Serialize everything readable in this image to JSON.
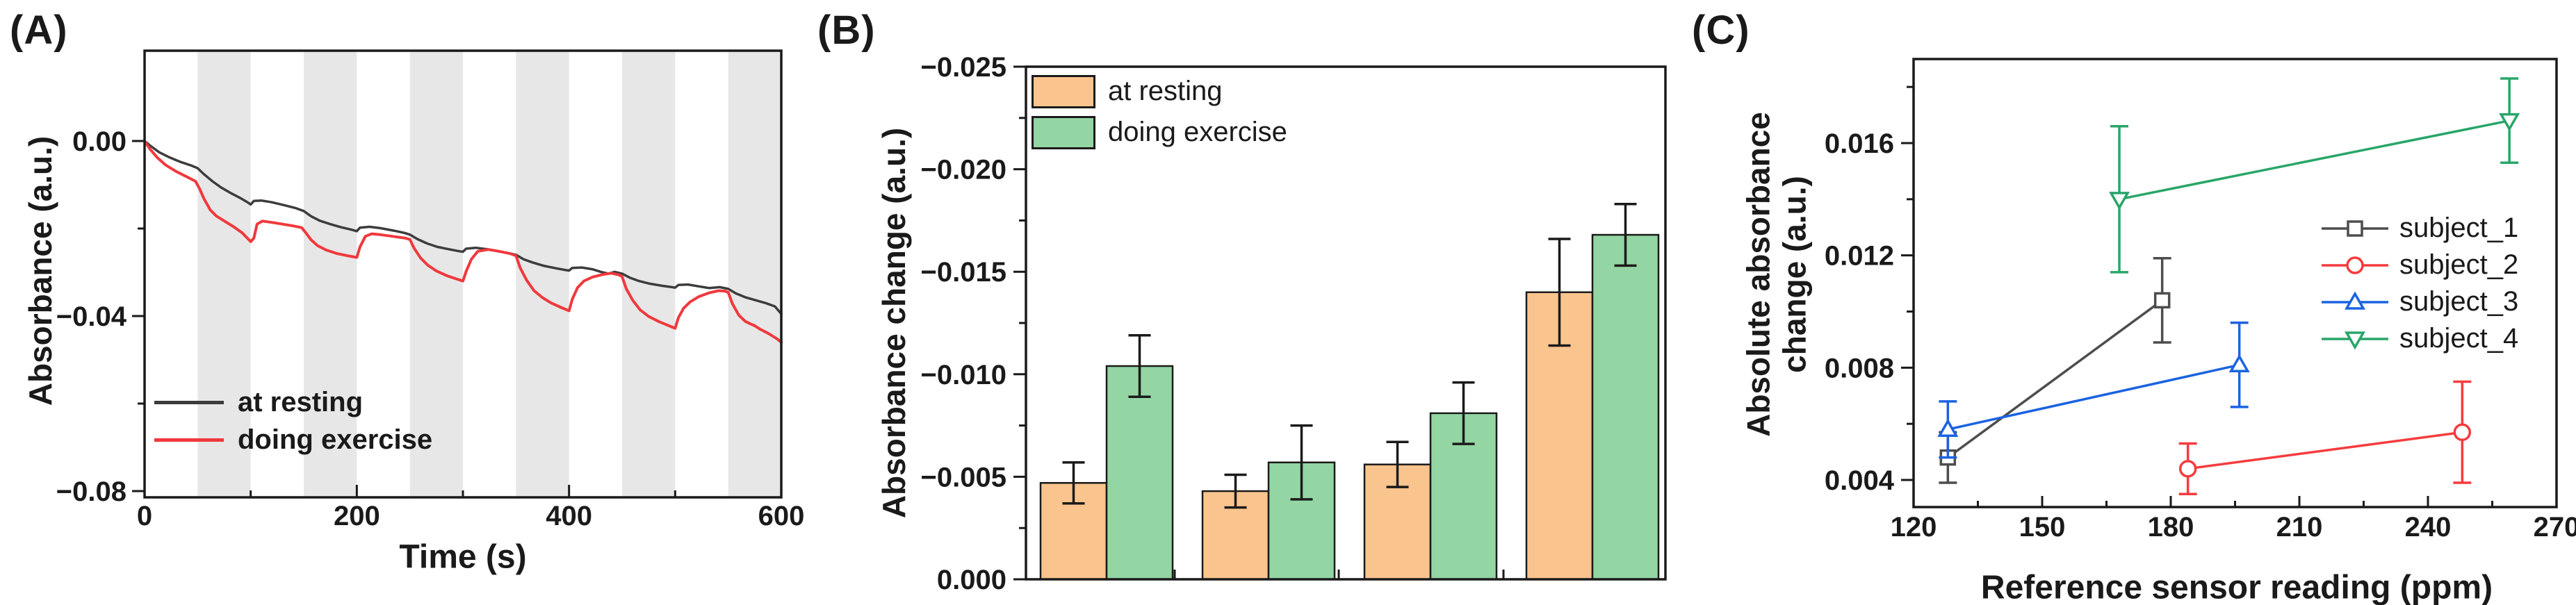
{
  "panel_labels": {
    "a": "(A)",
    "b": "(B)",
    "c": "(C)"
  },
  "chart_data": [
    {
      "panel": "A",
      "type": "line",
      "xlabel": "Time (s)",
      "ylabel": "Absorbance (a.u.)",
      "xlim": [
        0,
        600
      ],
      "ylim": [
        -0.0814,
        0.0206
      ],
      "grid": false,
      "x_ticks": {
        "values": [
          0,
          200,
          400,
          600
        ],
        "labels": [
          "0",
          "200",
          "400",
          "600"
        ],
        "minor": [
          100,
          300,
          500
        ]
      },
      "y_ticks": {
        "values": [
          0.0,
          -0.04,
          -0.08
        ],
        "labels": [
          "0.00",
          "−0.04",
          "−0.08"
        ],
        "minor": [
          -0.02,
          -0.06
        ]
      },
      "shaded_bands": [
        [
          50,
          100
        ],
        [
          150,
          200
        ],
        [
          250,
          300
        ],
        [
          350,
          400
        ],
        [
          450,
          500
        ],
        [
          550,
          600
        ]
      ],
      "band_color": "#E7E7E7",
      "legend_position": "lower-left",
      "series": [
        {
          "name": "at resting",
          "color": "#3C3C3C",
          "points": [
            [
              0,
              0
            ],
            [
              6,
              -0.0012
            ],
            [
              14,
              -0.0026
            ],
            [
              24,
              -0.0038
            ],
            [
              34,
              -0.0048
            ],
            [
              44,
              -0.0056
            ],
            [
              50,
              -0.0062
            ],
            [
              56,
              -0.0076
            ],
            [
              64,
              -0.0092
            ],
            [
              72,
              -0.0106
            ],
            [
              82,
              -0.012
            ],
            [
              90,
              -0.013
            ],
            [
              97,
              -0.014
            ],
            [
              100,
              -0.0145
            ],
            [
              103,
              -0.0137
            ],
            [
              110,
              -0.0136
            ],
            [
              120,
              -0.014
            ],
            [
              132,
              -0.0147
            ],
            [
              142,
              -0.0153
            ],
            [
              150,
              -0.016
            ],
            [
              157,
              -0.0172
            ],
            [
              165,
              -0.0182
            ],
            [
              175,
              -0.019
            ],
            [
              185,
              -0.0197
            ],
            [
              194,
              -0.0202
            ],
            [
              200,
              -0.0206
            ],
            [
              203,
              -0.0198
            ],
            [
              212,
              -0.0196
            ],
            [
              222,
              -0.0199
            ],
            [
              235,
              -0.0205
            ],
            [
              245,
              -0.021
            ],
            [
              250,
              -0.0214
            ],
            [
              257,
              -0.0224
            ],
            [
              266,
              -0.0234
            ],
            [
              276,
              -0.0242
            ],
            [
              288,
              -0.0248
            ],
            [
              297,
              -0.0252
            ],
            [
              300,
              -0.0253
            ],
            [
              303,
              -0.0246
            ],
            [
              312,
              -0.0244
            ],
            [
              322,
              -0.0247
            ],
            [
              334,
              -0.0252
            ],
            [
              344,
              -0.0257
            ],
            [
              350,
              -0.026
            ],
            [
              357,
              -0.027
            ],
            [
              366,
              -0.0278
            ],
            [
              376,
              -0.0285
            ],
            [
              388,
              -0.0291
            ],
            [
              397,
              -0.0295
            ],
            [
              400,
              -0.0296
            ],
            [
              403,
              -0.029
            ],
            [
              412,
              -0.0289
            ],
            [
              422,
              -0.0293
            ],
            [
              430,
              -0.0299
            ],
            [
              437,
              -0.0303
            ],
            [
              443,
              -0.0299
            ],
            [
              450,
              -0.0303
            ],
            [
              457,
              -0.0312
            ],
            [
              466,
              -0.032
            ],
            [
              476,
              -0.0326
            ],
            [
              488,
              -0.0331
            ],
            [
              497,
              -0.0334
            ],
            [
              500,
              -0.0335
            ],
            [
              503,
              -0.0329
            ],
            [
              512,
              -0.0328
            ],
            [
              522,
              -0.0332
            ],
            [
              532,
              -0.0336
            ],
            [
              542,
              -0.0334
            ],
            [
              550,
              -0.0338
            ],
            [
              557,
              -0.0348
            ],
            [
              566,
              -0.0357
            ],
            [
              576,
              -0.0364
            ],
            [
              586,
              -0.0371
            ],
            [
              594,
              -0.0378
            ],
            [
              600,
              -0.0395
            ]
          ]
        },
        {
          "name": "doing exercise",
          "color": "#F0393C",
          "points": [
            [
              0,
              0
            ],
            [
              5,
              -0.0018
            ],
            [
              12,
              -0.0038
            ],
            [
              20,
              -0.0055
            ],
            [
              30,
              -0.007
            ],
            [
              40,
              -0.0082
            ],
            [
              48,
              -0.0092
            ],
            [
              52,
              -0.011
            ],
            [
              56,
              -0.0132
            ],
            [
              62,
              -0.0158
            ],
            [
              68,
              -0.0172
            ],
            [
              76,
              -0.0184
            ],
            [
              84,
              -0.0196
            ],
            [
              92,
              -0.021
            ],
            [
              100,
              -0.023
            ],
            [
              103,
              -0.0222
            ],
            [
              106,
              -0.019
            ],
            [
              111,
              -0.0183
            ],
            [
              120,
              -0.0186
            ],
            [
              130,
              -0.019
            ],
            [
              140,
              -0.0194
            ],
            [
              148,
              -0.0198
            ],
            [
              152,
              -0.021
            ],
            [
              157,
              -0.0226
            ],
            [
              163,
              -0.0239
            ],
            [
              171,
              -0.0249
            ],
            [
              181,
              -0.0257
            ],
            [
              191,
              -0.0262
            ],
            [
              200,
              -0.0266
            ],
            [
              203,
              -0.0242
            ],
            [
              208,
              -0.0218
            ],
            [
              214,
              -0.0212
            ],
            [
              222,
              -0.0214
            ],
            [
              234,
              -0.0218
            ],
            [
              246,
              -0.0222
            ],
            [
              250,
              -0.0225
            ],
            [
              254,
              -0.0245
            ],
            [
              260,
              -0.0267
            ],
            [
              267,
              -0.0284
            ],
            [
              275,
              -0.0297
            ],
            [
              285,
              -0.0308
            ],
            [
              295,
              -0.0316
            ],
            [
              300,
              -0.032
            ],
            [
              303,
              -0.0298
            ],
            [
              308,
              -0.027
            ],
            [
              314,
              -0.0252
            ],
            [
              324,
              -0.0248
            ],
            [
              334,
              -0.0252
            ],
            [
              344,
              -0.0257
            ],
            [
              350,
              -0.0262
            ],
            [
              354,
              -0.029
            ],
            [
              360,
              -0.0318
            ],
            [
              367,
              -0.0342
            ],
            [
              375,
              -0.0358
            ],
            [
              383,
              -0.037
            ],
            [
              393,
              -0.0381
            ],
            [
              400,
              -0.0388
            ],
            [
              403,
              -0.0362
            ],
            [
              408,
              -0.0335
            ],
            [
              414,
              -0.032
            ],
            [
              422,
              -0.0311
            ],
            [
              432,
              -0.0305
            ],
            [
              440,
              -0.0302
            ],
            [
              447,
              -0.0306
            ],
            [
              450,
              -0.031
            ],
            [
              454,
              -0.0338
            ],
            [
              460,
              -0.0364
            ],
            [
              467,
              -0.0386
            ],
            [
              475,
              -0.0401
            ],
            [
              485,
              -0.0413
            ],
            [
              495,
              -0.0423
            ],
            [
              500,
              -0.0428
            ],
            [
              503,
              -0.0404
            ],
            [
              508,
              -0.0382
            ],
            [
              514,
              -0.0368
            ],
            [
              522,
              -0.0356
            ],
            [
              532,
              -0.0347
            ],
            [
              541,
              -0.0342
            ],
            [
              547,
              -0.0343
            ],
            [
              550,
              -0.0346
            ],
            [
              554,
              -0.0372
            ],
            [
              560,
              -0.0398
            ],
            [
              566,
              -0.0412
            ],
            [
              571,
              -0.0418
            ],
            [
              575,
              -0.0422
            ],
            [
              580,
              -0.043
            ],
            [
              588,
              -0.044
            ],
            [
              596,
              -0.0452
            ],
            [
              600,
              -0.046
            ]
          ]
        }
      ]
    },
    {
      "panel": "B",
      "type": "bar",
      "ylabel": "Absorbance change (a.u.)",
      "ylim": [
        0.0,
        -0.025
      ],
      "axis_inverted": true,
      "y_ticks": {
        "values": [
          -0.025,
          -0.02,
          -0.015,
          -0.01,
          -0.005,
          0.0
        ],
        "labels": [
          "−0.025",
          "−0.020",
          "−0.015",
          "−0.010",
          "−0.005",
          "0.000"
        ],
        "minor": [
          -0.0225,
          -0.0175,
          -0.0125,
          -0.0075,
          -0.0025
        ]
      },
      "n_groups": 4,
      "legend_position": "upper-left",
      "series": [
        {
          "name": "at resting",
          "fill": "#FAC48E",
          "edge": "#1a1a1a",
          "values": [
            -0.0047,
            -0.0043,
            -0.0056,
            -0.014
          ],
          "errors": [
            0.001,
            0.0008,
            0.0011,
            0.0026
          ]
        },
        {
          "name": "doing exercise",
          "fill": "#93D5A3",
          "edge": "#1a1a1a",
          "values": [
            -0.0104,
            -0.0057,
            -0.0081,
            -0.0168
          ],
          "errors": [
            0.0015,
            0.0018,
            0.0015,
            0.0015
          ]
        }
      ]
    },
    {
      "panel": "C",
      "type": "scatter",
      "xlabel": "Reference sensor reading (ppm)",
      "ylabel": "Absolute absorbance change (a.u.)",
      "ylabel_lines": [
        "Absolute absorbance",
        "change (a.u.)"
      ],
      "xlim": [
        120,
        270
      ],
      "ylim": [
        0.003,
        0.019
      ],
      "x_ticks": {
        "values": [
          120,
          150,
          180,
          210,
          240,
          270
        ],
        "labels": [
          "120",
          "150",
          "180",
          "210",
          "240",
          "270"
        ],
        "minor": [
          135,
          165,
          195,
          225,
          255
        ]
      },
      "y_ticks": {
        "values": [
          0.004,
          0.008,
          0.012,
          0.016
        ],
        "labels": [
          "0.004",
          "0.008",
          "0.012",
          "0.016"
        ],
        "minor": [
          0.006,
          0.01,
          0.014,
          0.018
        ]
      },
      "legend_position": "middle-right",
      "series": [
        {
          "name": "subject_1",
          "color": "#4D4D4D",
          "marker": "square",
          "points": [
            [
              128,
              0.0048,
              0.0009
            ],
            [
              178,
              0.0104,
              0.0015
            ]
          ]
        },
        {
          "name": "subject_2",
          "color": "#F63B3D",
          "marker": "circle",
          "points": [
            [
              184,
              0.0044,
              0.0009
            ],
            [
              248,
              0.0057,
              0.0018
            ]
          ]
        },
        {
          "name": "subject_3",
          "color": "#1B63E0",
          "marker": "triangle-up",
          "points": [
            [
              128,
              0.0058,
              0.001
            ],
            [
              196,
              0.0081,
              0.0015
            ]
          ]
        },
        {
          "name": "subject_4",
          "color": "#28A669",
          "marker": "triangle-down",
          "points": [
            [
              168,
              0.014,
              0.0026
            ],
            [
              259,
              0.0168,
              0.0015
            ]
          ]
        }
      ]
    }
  ]
}
